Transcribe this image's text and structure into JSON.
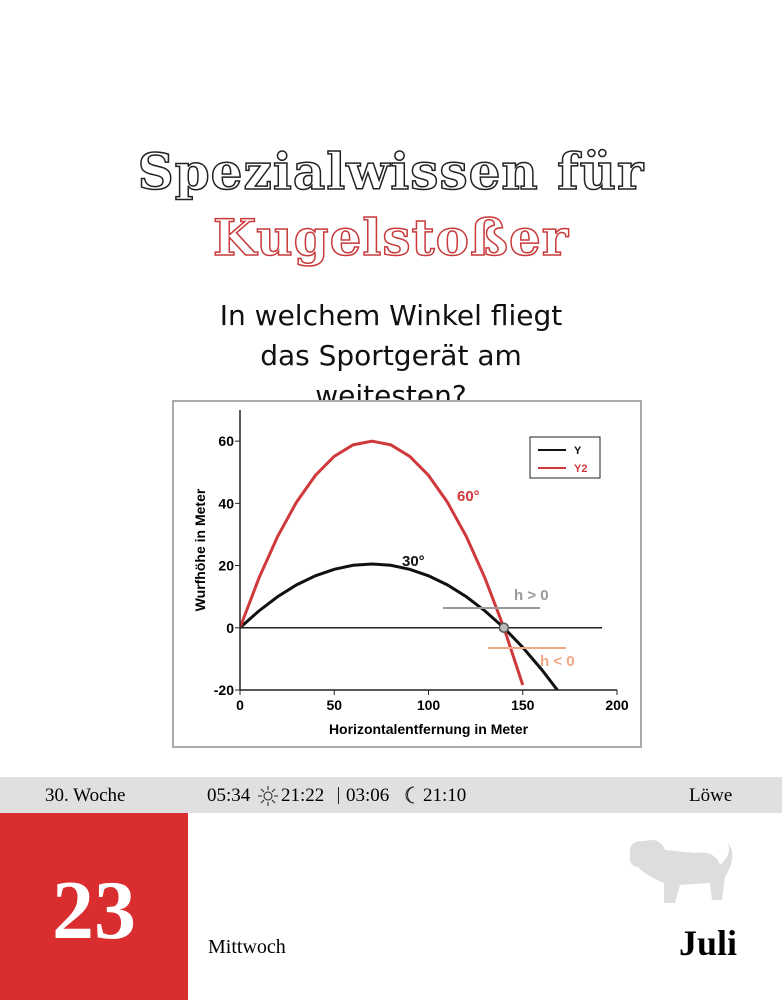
{
  "header": {
    "title_line1": "Spezialwissen für",
    "title_line2": "Kugelstoßer",
    "question": "In welchem Winkel fliegt das Sportgerät am weitesten?"
  },
  "chart_data": {
    "type": "line",
    "x_label": "Horizontalentfernung in Meter",
    "y_label": "Wurfhöhe in Meter",
    "x": [
      0,
      10,
      20,
      30,
      40,
      50,
      60,
      70,
      80,
      90,
      100,
      110,
      120,
      130,
      140,
      150,
      160,
      170
    ],
    "series": [
      {
        "name": "Y",
        "color": "#111111",
        "values": [
          0,
          5.4,
          10.0,
          13.8,
          16.7,
          18.8,
          20.1,
          20.5,
          20.1,
          18.8,
          16.7,
          13.8,
          10.0,
          5.4,
          0,
          -6.3,
          -13.4,
          -21.3
        ]
      },
      {
        "name": "Y2",
        "color": "#d0393b",
        "values": [
          0,
          15.9,
          29.4,
          40.4,
          49.0,
          55.1,
          58.8,
          60.0,
          58.8,
          55.1,
          49.0,
          40.4,
          29.4,
          15.9,
          0,
          -18.4,
          null,
          null
        ]
      }
    ],
    "xlim": [
      0,
      200
    ],
    "ylim": [
      -20,
      70
    ],
    "xticks": [
      0,
      50,
      100,
      150,
      200
    ],
    "yticks": [
      -20,
      0,
      20,
      40,
      60
    ],
    "annotations": [
      "30°",
      "60°",
      "h > 0",
      "h < 0"
    ]
  },
  "footer": {
    "week": "30. Woche",
    "sunrise": "05:34",
    "sunset": "21:22",
    "moonrise": "03:06",
    "moonset": "21:10",
    "sign": "Löwe",
    "day": "23",
    "weekday": "Mittwoch",
    "month": "Juli"
  }
}
